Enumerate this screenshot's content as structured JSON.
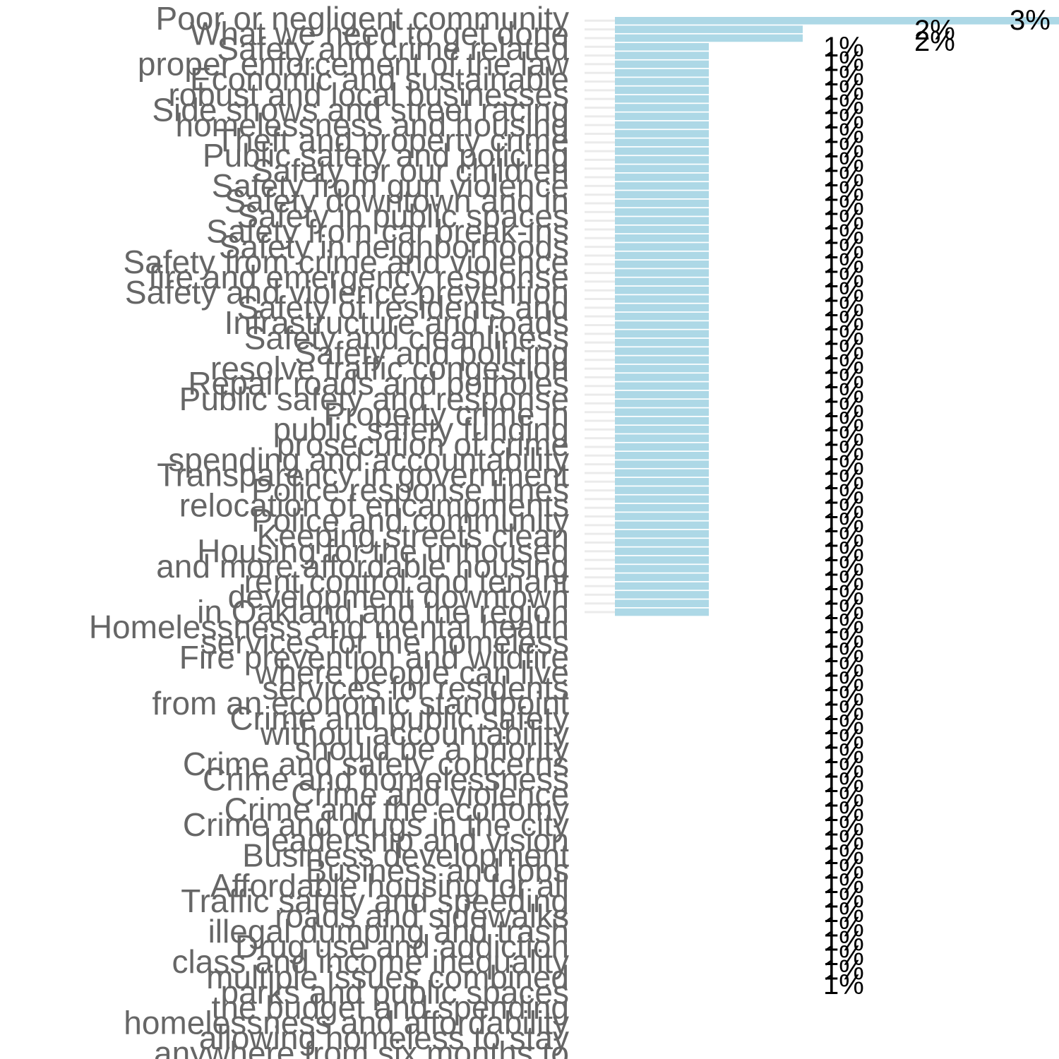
{
  "chart_data": {
    "type": "bar",
    "orientation": "horizontal",
    "title": "",
    "xlabel": "",
    "ylabel": "",
    "grid": true,
    "legend": "none",
    "colors": {
      "bar": "#add8e6",
      "grid": "#ebebeb",
      "category_text": "#666666",
      "value_text": "#000000"
    },
    "xlim": [
      0,
      4
    ],
    "categories": [
      "Poor or negligent community",
      "What we need to get done",
      "Safety and crime related",
      "proper enforcement of the law",
      "Economic and sustainable",
      "robust and local businesses",
      "Side shows and street racing",
      "homelessness and housing",
      "Theft and property crime",
      "Public safety and policing",
      "Safety for our children",
      "Safety from gun violence",
      "Safety downtown and in",
      "Safety in public spaces",
      "Safety from car break-ins",
      "Safety in neighborhoods",
      "Safety from crime and violence",
      "fire and emergency response",
      "Safety and violence prevention",
      "Safety of residents and",
      "Infrastructure and roads",
      "Safety and cleanliness",
      "Safety and policing",
      "resolve traffic congestion",
      "Repair roads and potholes",
      "Public safety and response",
      "Property crime in",
      "public safety funding",
      "prosecution of crime",
      "spending and accountability",
      "Transparency in government",
      "Police response times",
      "relocation of encampments",
      "Police and community",
      "Keeping streets clean",
      "Housing for the unhoused",
      "and more affordable housing",
      "rent control and tenant",
      "development downtown",
      "in Oakland and the region",
      "Homelessness and mental health",
      "services for the homeless",
      "Fire prevention and wildfire",
      "where people can live",
      "services for residents",
      "from an economic standpoint",
      "Crime and public safety",
      "without accountability",
      "should be a priority",
      "Crime and safety concerns",
      "Crime and homelessness",
      "Crime and violence",
      "Crime and the economy",
      "Crime and drugs in the city",
      "leadership and vision",
      "Business development",
      "Business and jobs",
      "Affordable housing for all",
      "Traffic safety and speeding",
      "roads and sidewalks",
      "illegal dumping and trash",
      "Drug use and addiction",
      "class and income inequality",
      "multiple issues combined",
      "parks and public spaces",
      "the budget and spending",
      "homelessness and affordability",
      "allowing homeless to stay",
      "anywhere from six months to"
    ],
    "values": [
      3,
      2,
      2,
      1,
      1,
      1,
      1,
      1,
      1,
      1,
      1,
      1,
      1,
      1,
      1,
      1,
      1,
      1,
      1,
      1,
      1,
      1,
      1,
      1,
      1,
      1,
      1,
      1,
      1,
      1,
      1,
      1,
      1,
      1,
      1,
      1,
      1,
      1,
      1,
      1,
      1,
      1,
      1,
      1,
      1,
      1,
      1,
      1,
      1,
      1,
      1,
      1,
      1,
      1,
      1,
      1,
      1,
      1,
      1,
      1,
      1,
      1,
      1,
      1,
      1,
      1,
      1,
      1,
      1
    ],
    "value_labels": [
      "3%",
      "2%",
      "2%",
      "1%",
      "1%",
      "1%",
      "1%",
      "1%",
      "1%",
      "1%",
      "1%",
      "1%",
      "1%",
      "1%",
      "1%",
      "1%",
      "1%",
      "1%",
      "1%",
      "1%",
      "1%",
      "1%",
      "1%",
      "1%",
      "1%",
      "1%",
      "1%",
      "1%",
      "1%",
      "1%",
      "1%",
      "1%",
      "1%",
      "1%",
      "1%",
      "1%",
      "1%",
      "1%",
      "1%",
      "1%",
      "1%",
      "1%",
      "1%",
      "1%",
      "1%",
      "1%",
      "1%",
      "1%",
      "1%",
      "1%",
      "1%",
      "1%",
      "1%",
      "1%",
      "1%",
      "1%",
      "1%",
      "1%",
      "1%",
      "1%",
      "1%",
      "1%",
      "1%",
      "1%",
      "1%",
      "1%",
      "1%",
      "1%",
      "1%"
    ]
  }
}
